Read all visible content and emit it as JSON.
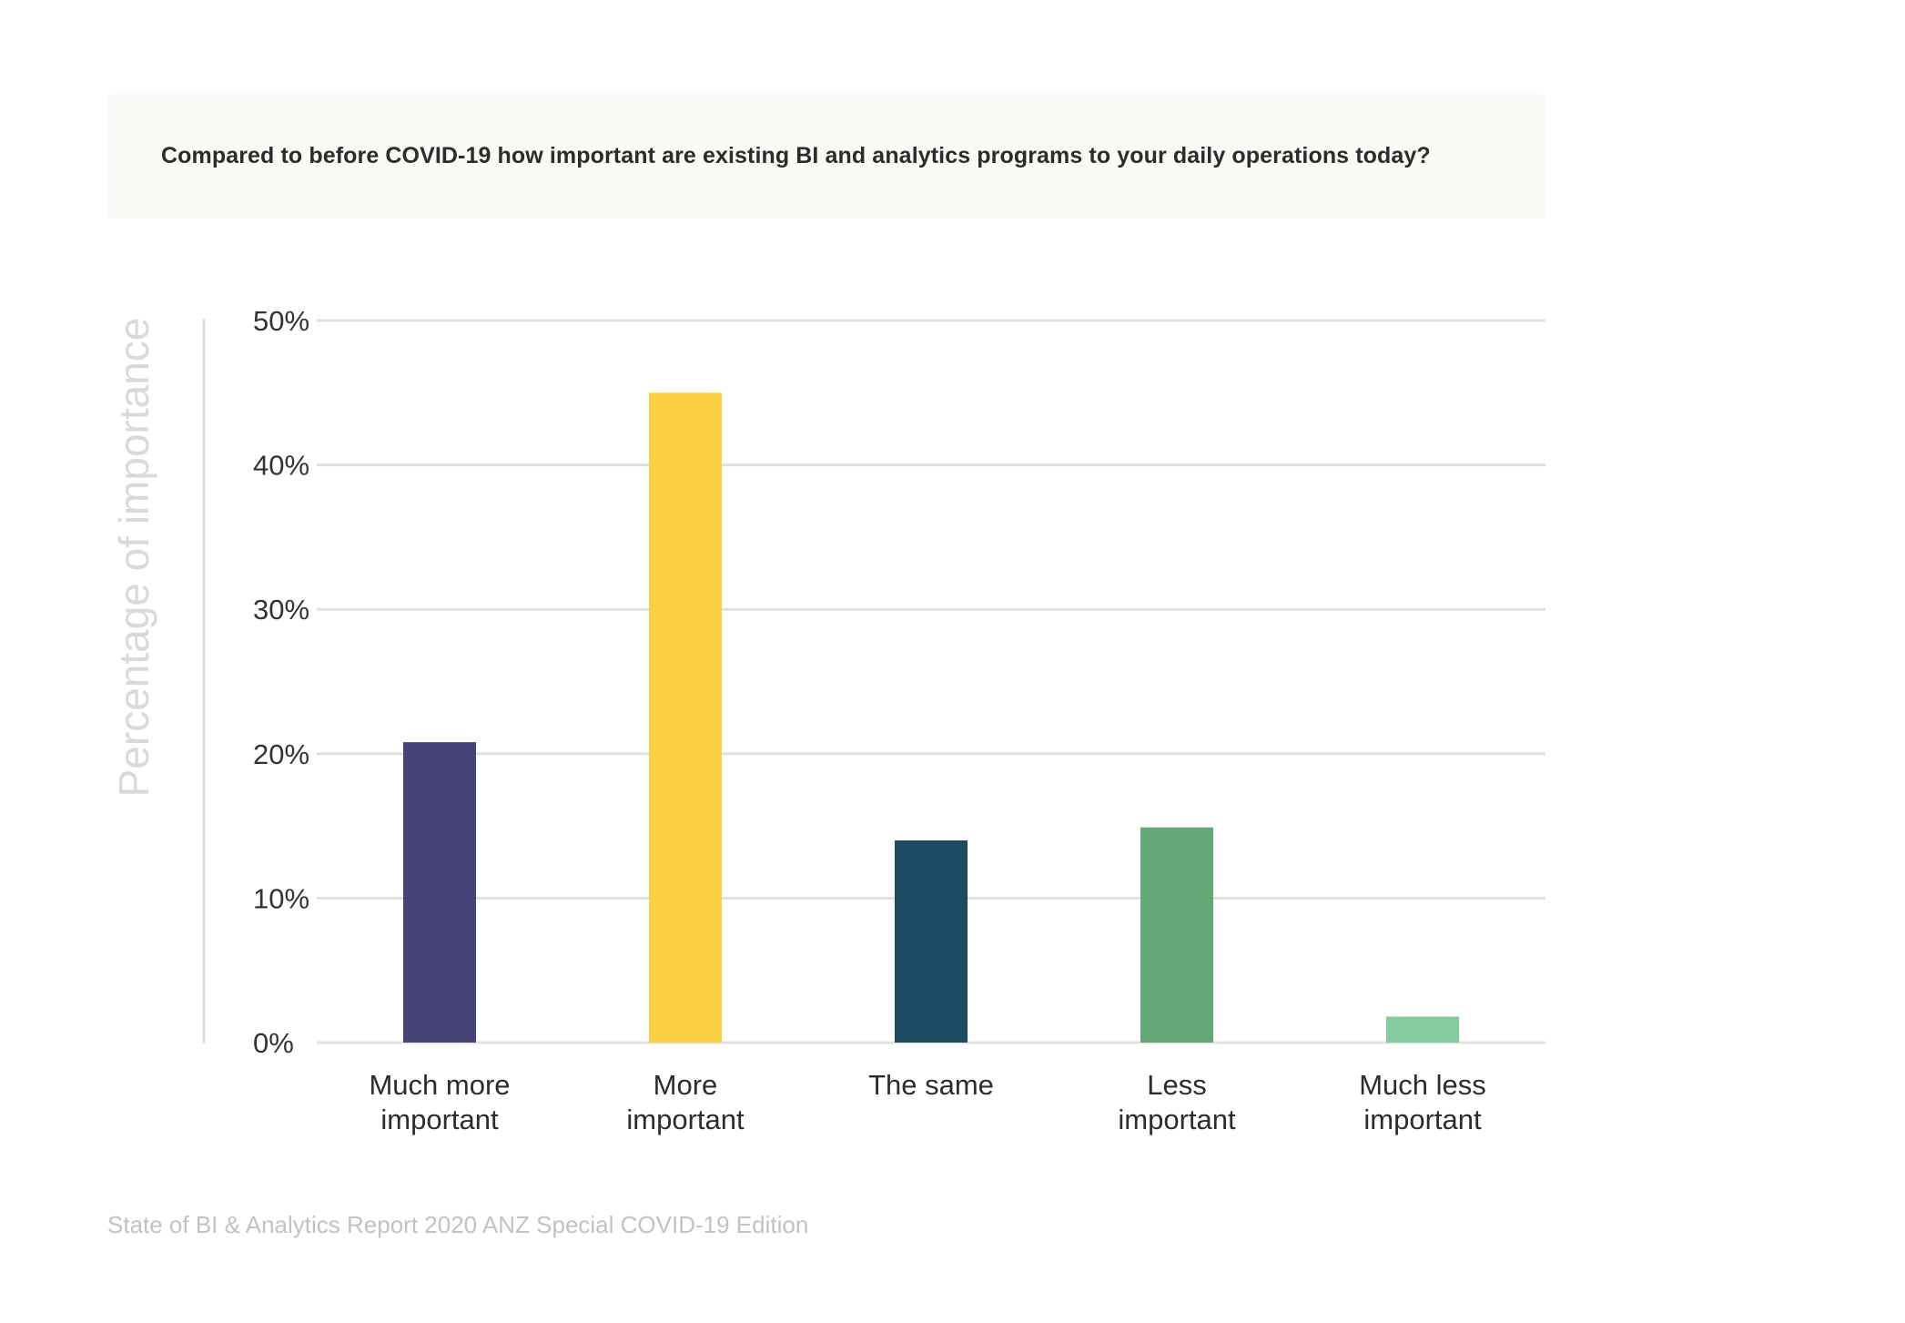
{
  "question": "Compared to before COVID-19 how important are existing BI and analytics programs to your daily operations today?",
  "source": "State of BI & Analytics Report 2020 ANZ Special COVID-19 Edition",
  "chart_data": {
    "type": "bar",
    "title": "",
    "xlabel": "",
    "ylabel": "Percentage of importance",
    "categories": [
      [
        "Much more",
        "important"
      ],
      [
        "More",
        "important"
      ],
      [
        "The same"
      ],
      [
        "Less",
        "important"
      ],
      [
        "Much less",
        "important"
      ]
    ],
    "values": [
      20.8,
      45.0,
      14.0,
      14.9,
      1.8
    ],
    "colors": [
      "#454378",
      "#fbcf42",
      "#1d4a63",
      "#64a87a",
      "#86cb9d"
    ],
    "ylim": [
      0,
      50
    ],
    "yticks": [
      0,
      10,
      20,
      30,
      40,
      50
    ],
    "ytick_labels": [
      "0%",
      "10%",
      "20%",
      "30%",
      "40%",
      "50%"
    ],
    "grid": true,
    "legend": "none"
  }
}
